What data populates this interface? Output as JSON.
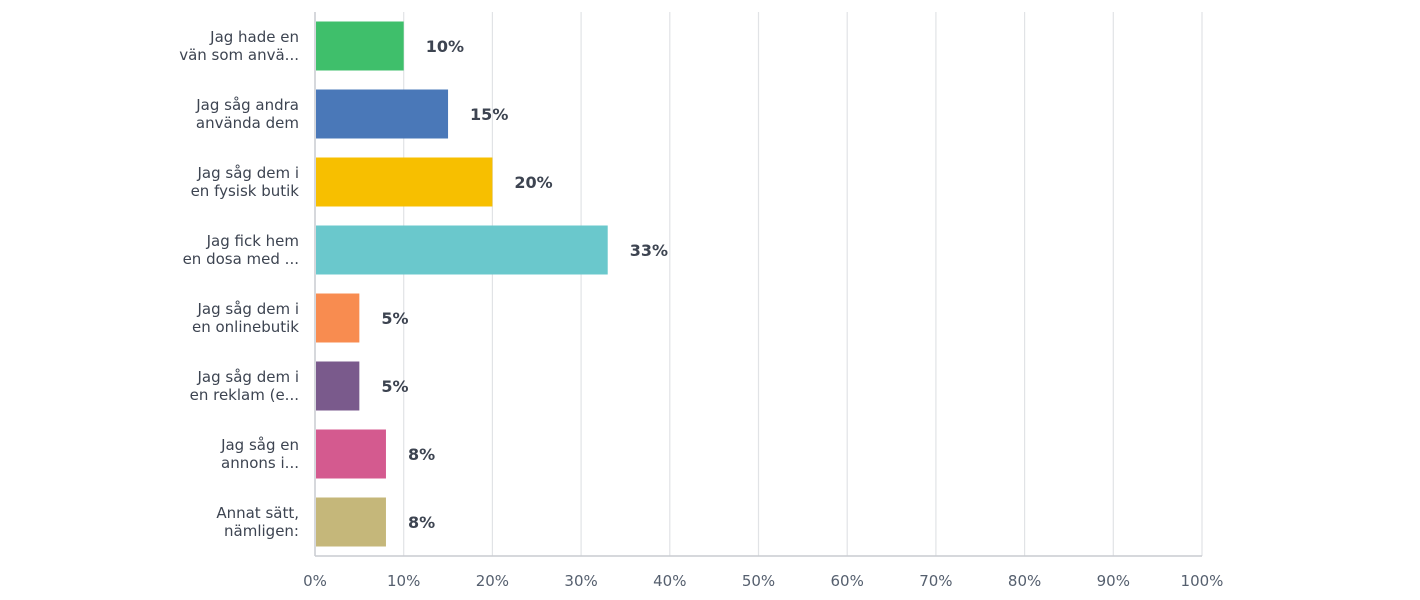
{
  "chart_data": {
    "type": "bar",
    "orientation": "horizontal",
    "categories": [
      [
        "Jag hade en",
        "vän som anvä..."
      ],
      [
        "Jag såg andra",
        "använda dem"
      ],
      [
        "Jag såg dem i",
        "en fysisk butik"
      ],
      [
        "Jag fick hem",
        "en dosa med ..."
      ],
      [
        "Jag såg dem i",
        "en onlinebutik"
      ],
      [
        "Jag såg dem i",
        "en reklam (e..."
      ],
      [
        "Jag såg en",
        "annons i..."
      ],
      [
        "Annat sätt,",
        "nämligen:"
      ]
    ],
    "values": [
      10,
      15,
      20,
      33,
      5,
      5,
      8,
      8
    ],
    "value_labels": [
      "10%",
      "15%",
      "20%",
      "33%",
      "5%",
      "5%",
      "8%",
      "8%"
    ],
    "colors": [
      "#3fbf6b",
      "#4a78b8",
      "#f7bf00",
      "#6ac8cc",
      "#f88c50",
      "#7a5a8c",
      "#d45a8f",
      "#c5b77a"
    ],
    "xlim": [
      0,
      100
    ],
    "xticks": [
      "0%",
      "10%",
      "20%",
      "30%",
      "40%",
      "50%",
      "60%",
      "70%",
      "80%",
      "90%",
      "100%"
    ],
    "grid": true,
    "title": "",
    "xlabel": "",
    "ylabel": ""
  }
}
